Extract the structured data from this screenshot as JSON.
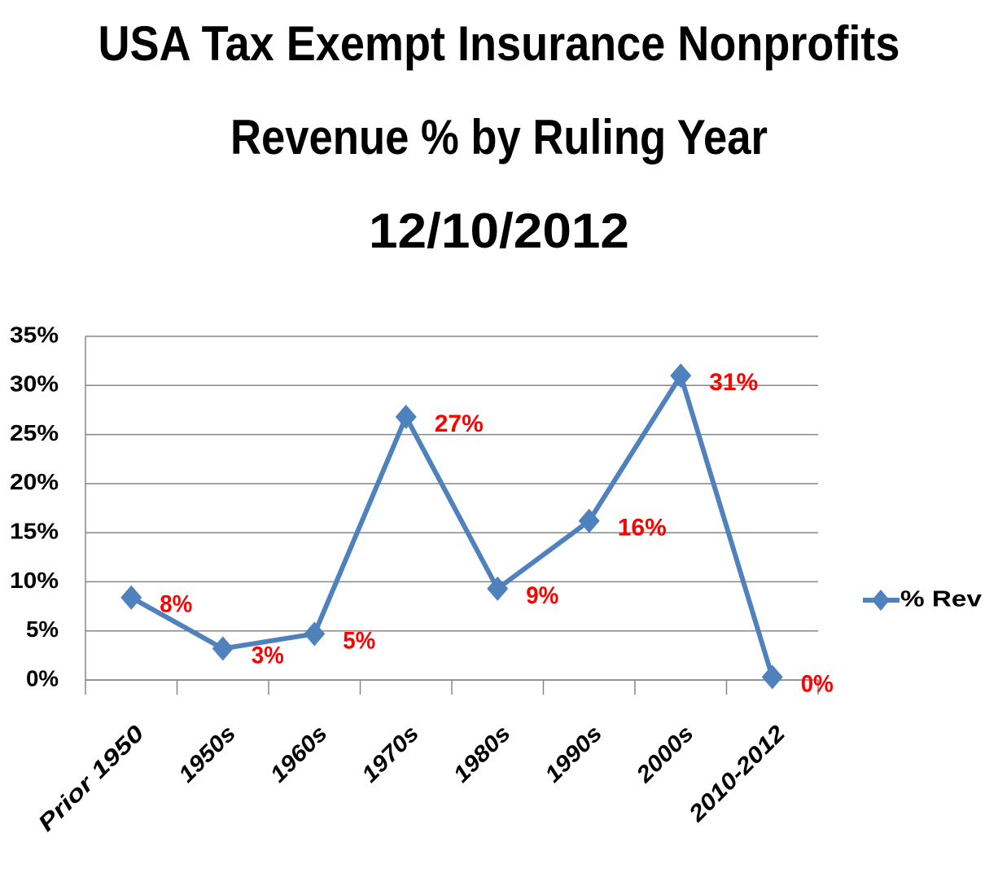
{
  "chart_data": {
    "type": "line",
    "title": [
      "USA Tax Exempt Insurance Nonprofits",
      "Revenue % by Ruling Year",
      "12/10/2012"
    ],
    "categories": [
      "Prior 1950",
      "1950s",
      "1960s",
      "1970s",
      "1980s",
      "1990s",
      "2000s",
      "2010-2012"
    ],
    "series": [
      {
        "name": "% Rev",
        "color": "#4f81bd",
        "values": [
          8.4,
          3.2,
          4.7,
          26.8,
          9.3,
          16.2,
          31,
          0.3
        ],
        "value_labels": [
          "8%",
          "3%",
          "5%",
          "27%",
          "9%",
          "16%",
          "31%",
          "0%"
        ]
      }
    ],
    "value_label_color": "#ff0000",
    "ylim": [
      0,
      35
    ],
    "yticks": [
      {
        "value": 0,
        "label": "0%"
      },
      {
        "value": 5,
        "label": "5%"
      },
      {
        "value": 10,
        "label": "10%"
      },
      {
        "value": 15,
        "label": "15%"
      },
      {
        "value": 20,
        "label": "20%"
      },
      {
        "value": 25,
        "label": "25%"
      },
      {
        "value": 30,
        "label": "30%"
      },
      {
        "value": 35,
        "label": "35%"
      }
    ],
    "grid": true,
    "legend": "right"
  }
}
